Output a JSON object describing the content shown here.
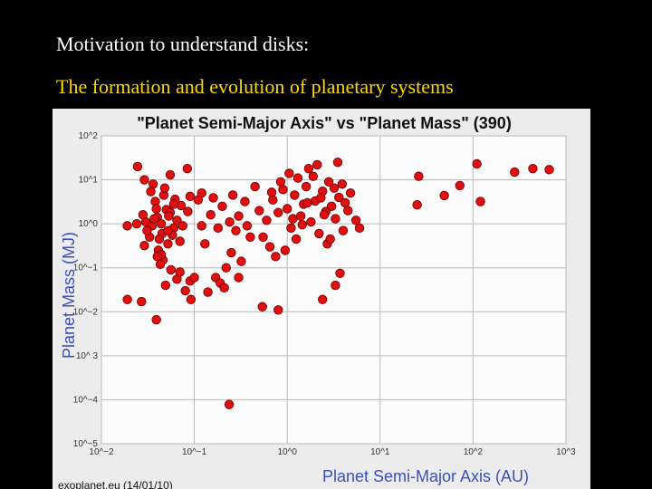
{
  "slide": {
    "title": "Motivation to understand disks:",
    "subtitle": "The formation and evolution of planetary systems"
  },
  "chart_data": {
    "type": "scatter",
    "title": "\"Planet Semi-Major Axis\"  vs \"Planet Mass\" (390)",
    "x_label": "Planet Semi-Major Axis (AU)",
    "y_label": "Planet Mass (MJ)",
    "source": "exoplanet.eu (14/01/10)",
    "log_x": true,
    "log_y": true,
    "grid": true,
    "color": "#e01010",
    "xlim": [
      0.01,
      1000
    ],
    "ylim": [
      1e-05,
      100
    ],
    "xticks": [
      {
        "value": 0.01,
        "label": "10^−2"
      },
      {
        "value": 0.1,
        "label": "10^−1"
      },
      {
        "value": 1,
        "label": "10^0"
      },
      {
        "value": 10,
        "label": "10^1"
      },
      {
        "value": 100,
        "label": "10^2"
      },
      {
        "value": 1000,
        "label": "10^3"
      }
    ],
    "yticks": [
      {
        "value": 1e-05,
        "label": "10^−5"
      },
      {
        "value": 0.0001,
        "label": "10^−4"
      },
      {
        "value": 0.001,
        "label": "10^ 3"
      },
      {
        "value": 0.01,
        "label": "10^−2"
      },
      {
        "value": 0.1,
        "label": "10^−1"
      },
      {
        "value": 1,
        "label": "10^0"
      },
      {
        "value": 10,
        "label": "10^1"
      },
      {
        "value": 100,
        "label": "10^2"
      }
    ],
    "x": [
      0.03,
      0.035,
      0.04,
      0.045,
      0.05,
      0.042,
      0.038,
      0.055,
      0.06,
      0.033,
      0.028,
      0.047,
      0.052,
      0.065,
      0.072,
      0.039,
      0.044,
      0.031,
      0.058,
      0.048,
      0.036,
      0.07,
      0.062,
      0.041,
      0.053,
      0.046,
      0.029,
      0.075,
      0.085,
      0.024,
      0.019,
      0.034,
      0.056,
      0.043,
      0.065,
      0.049,
      0.08,
      0.09,
      0.1,
      0.07,
      0.044,
      0.052,
      0.06,
      0.037,
      0.04,
      0.12,
      0.15,
      0.18,
      0.11,
      0.13,
      0.2,
      0.25,
      0.3,
      0.22,
      0.17,
      0.35,
      0.4,
      0.28,
      0.14,
      0.19,
      0.12,
      0.09,
      0.16,
      0.26,
      0.32,
      0.45,
      0.37,
      0.21,
      0.3,
      0.24,
      0.6,
      0.7,
      0.8,
      0.9,
      1.0,
      1.1,
      1.2,
      1.3,
      1.4,
      1.5,
      1.6,
      1.8,
      2.0,
      2.2,
      2.4,
      2.6,
      2.8,
      3.0,
      3.3,
      3.6,
      4.0,
      4.5,
      0.55,
      0.65,
      0.75,
      0.95,
      1.05,
      1.7,
      2.1,
      3.5,
      1.25,
      2.7,
      3.9,
      4.8,
      5.5,
      6,
      0.85,
      1.9,
      2.3,
      0.5,
      1.15,
      1.45,
      2.5,
      3.2,
      4.2,
      0.68,
      1.65,
      2.9,
      26,
      49,
      25,
      72,
      110,
      120,
      280,
      440,
      660,
      3.7,
      3.3,
      2.4,
      0.54,
      0.8,
      0.0245,
      0.084,
      0.055,
      0.029,
      0.237,
      0.039,
      0.019,
      0.027,
      0.092
    ],
    "values": [
      1.1,
      0.9,
      1.4,
      0.6,
      2.1,
      0.45,
      3.2,
      1.8,
      0.8,
      0.5,
      1.6,
      4.5,
      0.35,
      1.2,
      2.6,
      2.2,
      1.0,
      0.7,
      0.55,
      6.5,
      8.0,
      0.4,
      3.6,
      0.25,
      1.5,
      0.15,
      0.32,
      0.9,
      1.9,
      1.0,
      0.9,
      5.4,
      0.09,
      0.12,
      0.055,
      0.04,
      0.03,
      0.05,
      0.06,
      0.08,
      0.2,
      0.7,
      2.8,
      1.3,
      0.18,
      0.9,
      1.6,
      0.8,
      3.5,
      0.35,
      2.5,
      0.22,
      1.5,
      0.1,
      0.06,
      3.2,
      0.5,
      0.7,
      0.028,
      0.045,
      5,
      4.2,
      3.9,
      4.5,
      0.14,
      7,
      0.9,
      0.035,
      0.06,
      1.1,
      1.2,
      3.5,
      1.8,
      6,
      2.2,
      0.8,
      4.5,
      11,
      1.5,
      2.8,
      7,
      1.1,
      3.3,
      0.6,
      5.5,
      1.9,
      9,
      2.5,
      1.3,
      4,
      0.7,
      2,
      0.5,
      0.3,
      0.18,
      0.25,
      14,
      18,
      22,
      25,
      0.45,
      0.35,
      8,
      5,
      1.2,
      0.8,
      9,
      12,
      3.9,
      2,
      1.3,
      0.95,
      1.6,
      6.5,
      3,
      5.2,
      3,
      0.45,
      12,
      4.4,
      2.7,
      7.4,
      23,
      3.2,
      15,
      18,
      17,
      0.075,
      0.04,
      0.019,
      0.013,
      0.011,
      20,
      18,
      13,
      10,
      7.8e-05,
      0.0066,
      0.019,
      0.017,
      0.019
    ]
  }
}
